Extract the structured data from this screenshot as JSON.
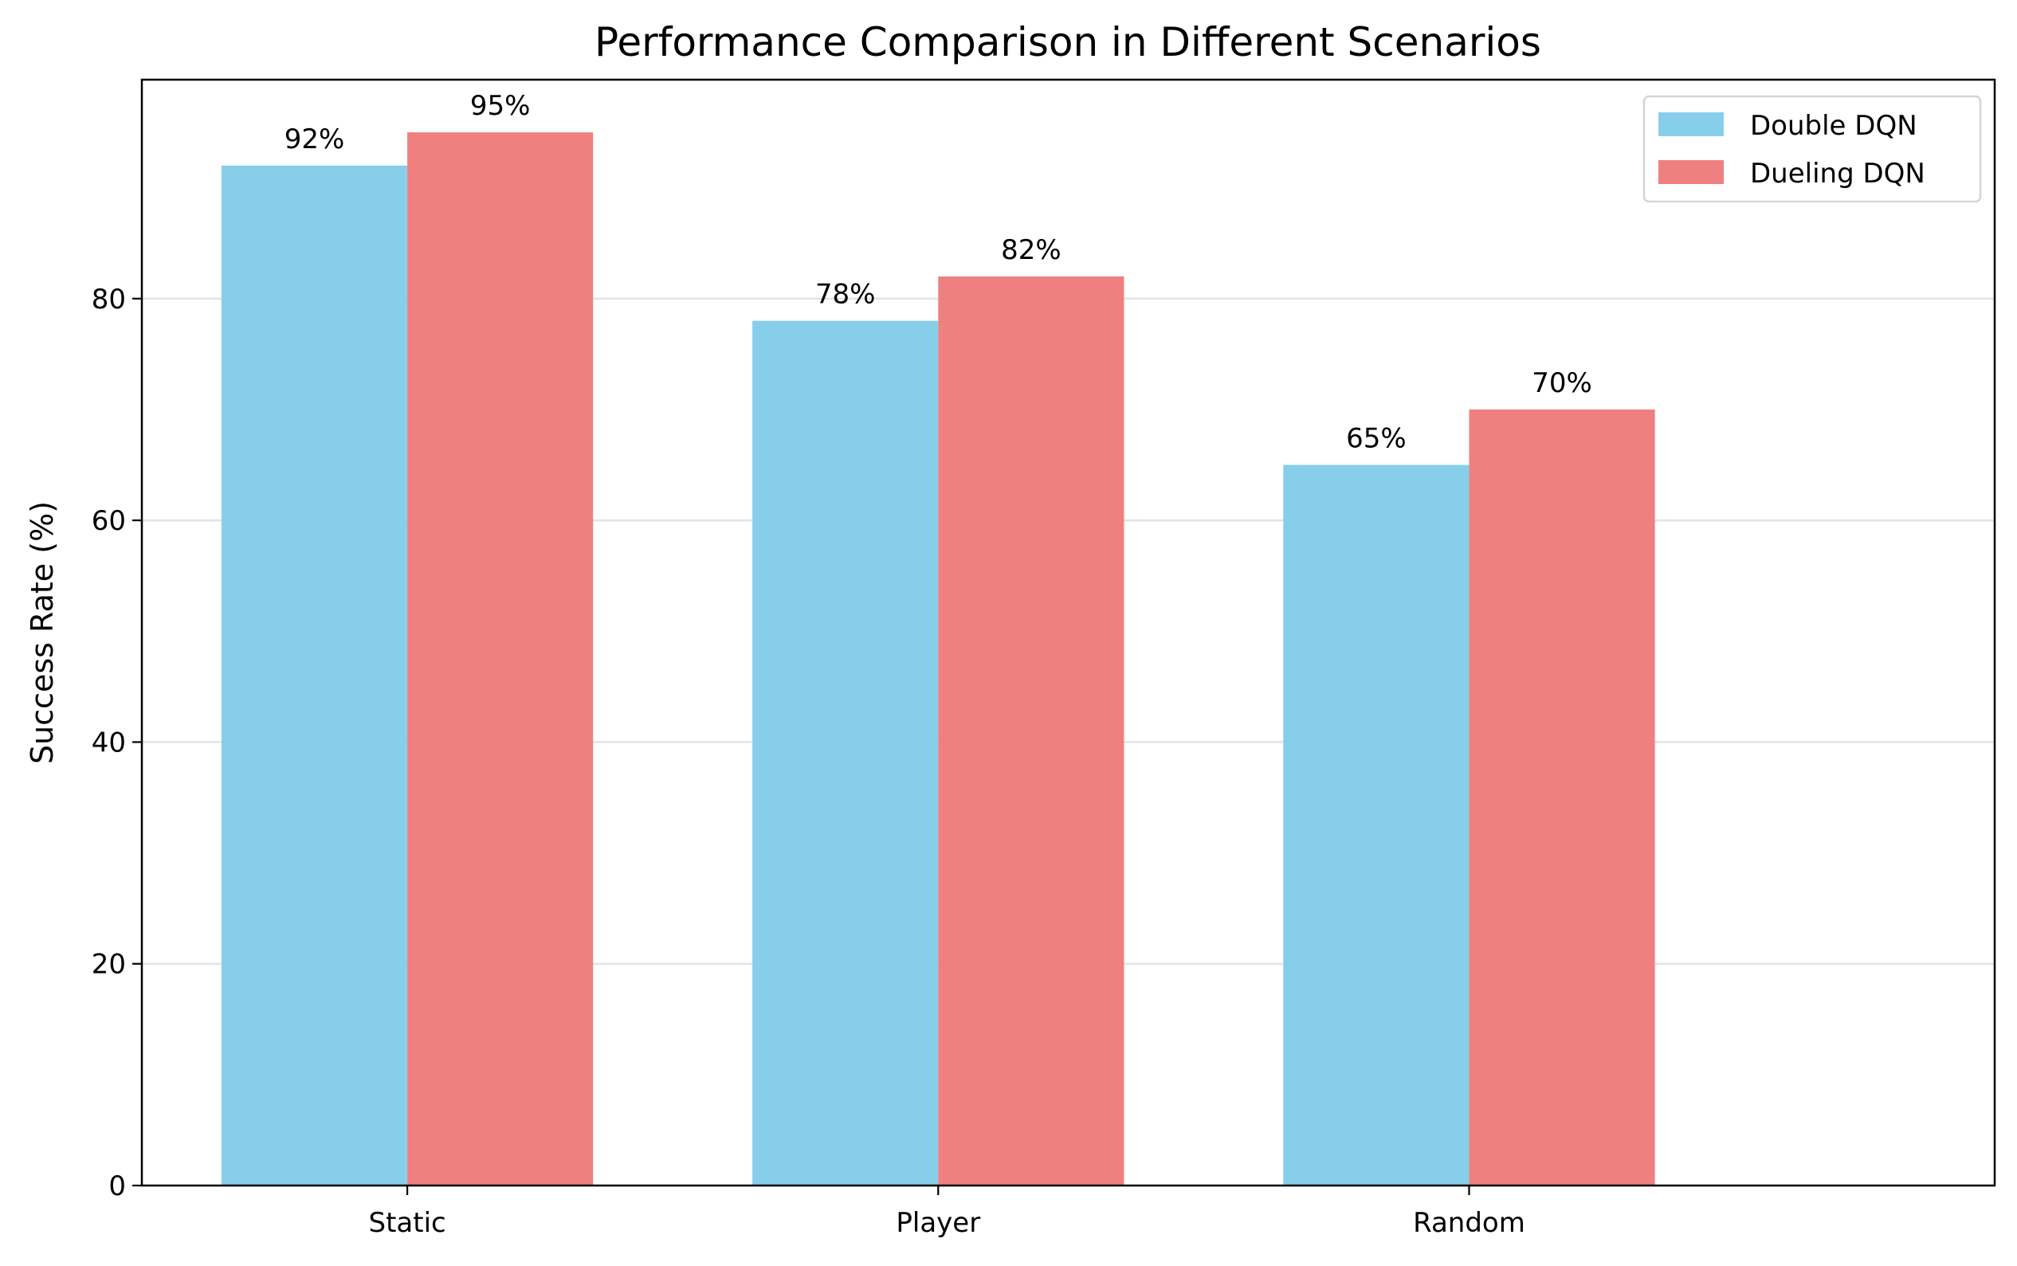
{
  "chart_data": {
    "type": "bar",
    "title": "Performance Comparison in Different Scenarios",
    "xlabel": "",
    "ylabel": "Success Rate (%)",
    "categories": [
      "Static",
      "Player",
      "Random"
    ],
    "series": [
      {
        "name": "Double DQN",
        "values": [
          92,
          78,
          65
        ],
        "labels": [
          "92%",
          "78%",
          "65%"
        ],
        "color": "#87ceeb"
      },
      {
        "name": "Dueling DQN",
        "values": [
          95,
          82,
          70
        ],
        "labels": [
          "95%",
          "82%",
          "70%"
        ],
        "color": "#f08080"
      }
    ],
    "ylim": [
      0,
      99.75
    ],
    "yticks": [
      0,
      20,
      40,
      60,
      80
    ],
    "ytick_labels": [
      "0",
      "20",
      "40",
      "60",
      "80"
    ],
    "grid": "horizontal",
    "legend": "top-right"
  }
}
